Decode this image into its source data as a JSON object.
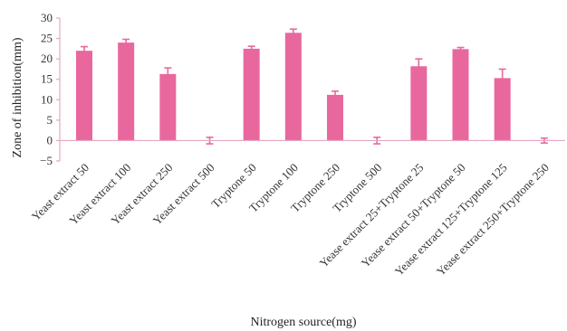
{
  "chart_data": {
    "type": "bar",
    "title": "",
    "xlabel": "Nitrogen source(mg)",
    "ylabel": "Zone of inhibition(mm)",
    "ylim": [
      -5,
      30
    ],
    "yticks": [
      "30",
      "25",
      "20",
      "15",
      "10",
      "5",
      "0",
      "−5"
    ],
    "grid": false,
    "categories": [
      "Yeast extract 50",
      "Yeast extract 100",
      "Yeast extract 250",
      "Yeast extract 500",
      "Tryptone 50",
      "Tryptone 100",
      "Tryptone 250",
      "Tryptone 500",
      "Yease extract 25+Tryptone 25",
      "Yease extract 50+Tryptone 50",
      "Yease extract 125+Tryptone 125",
      "Yease extract 250+Tryptone 250"
    ],
    "series": [
      {
        "values": [
          22,
          24,
          16.3,
          0,
          22.5,
          26.4,
          11.2,
          0,
          18.2,
          22.4,
          15.3,
          0
        ],
        "errors": [
          1.0,
          0.8,
          1.5,
          0.8,
          0.6,
          0.9,
          0.9,
          0.8,
          1.8,
          0.4,
          2.2,
          0.6
        ]
      }
    ],
    "colors": {
      "bar": "#e8689e",
      "error_bar": "#e8689e",
      "axis": "#e6a8c2"
    }
  }
}
